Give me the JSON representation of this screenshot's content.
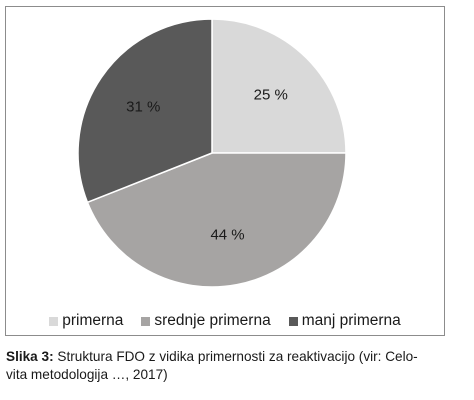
{
  "chart_data": {
    "type": "pie",
    "categories": [
      "primerna",
      "srednje primerna",
      "manj primerna"
    ],
    "values": [
      25,
      44,
      31
    ],
    "value_labels": [
      "25 %",
      "44 %",
      "31 %"
    ],
    "colors": [
      "#d9d9d9",
      "#a6a4a3",
      "#595959"
    ],
    "legend_position": "bottom"
  },
  "caption": {
    "lead": "Slika 3:",
    "line1": " Struktura FDO z vidika primernosti za reaktivacijo (vir: Celo-",
    "line2": "vita metodologija …, 2017)"
  }
}
